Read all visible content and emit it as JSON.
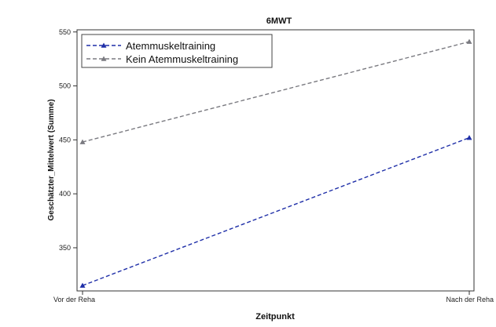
{
  "chart_data": {
    "type": "line",
    "title": "6MWT",
    "xlabel": "Zeitpunkt",
    "ylabel": "Geschätzter_Mittelwert (Summe)",
    "categories": [
      "Vor der Reha",
      "Nach der Reha"
    ],
    "ylim": [
      310,
      552
    ],
    "yticks": [
      350,
      400,
      450,
      500,
      550
    ],
    "grid": false,
    "legend_position": "top-left",
    "series": [
      {
        "name": "Atemmuskeltraining",
        "values": [
          315,
          452
        ],
        "color": "#1f2fa8",
        "marker": "triangle",
        "line_style": "dashed"
      },
      {
        "name": "Kein Atemmuskeltraining",
        "values": [
          448,
          541
        ],
        "color": "#7a7a80",
        "marker": "triangle",
        "line_style": "dashed"
      }
    ]
  }
}
